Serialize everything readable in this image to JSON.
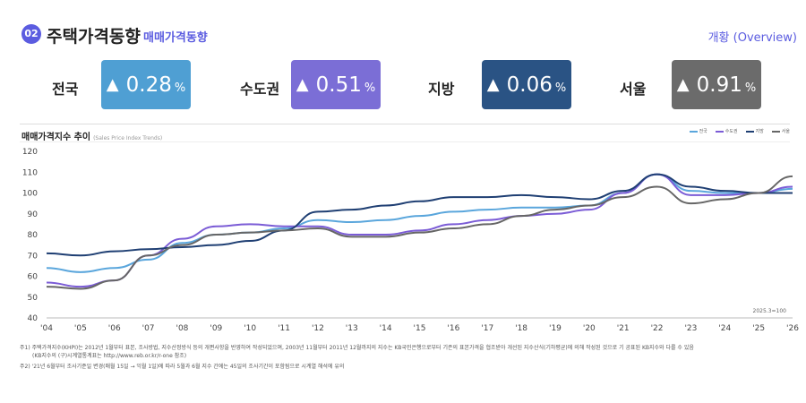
{
  "header": {
    "number": "02",
    "title": "주택가격동향",
    "subtitle": "매매가격동향",
    "overview_link": "개황 (Overview)"
  },
  "kpis": [
    {
      "label": "전국",
      "value": "0.28",
      "unit": "%",
      "arrow": "▲",
      "color": "#4f9fd3"
    },
    {
      "label": "수도권",
      "value": "0.51",
      "unit": "%",
      "arrow": "▲",
      "color": "#7b6ed6"
    },
    {
      "label": "지방",
      "value": "0.06",
      "unit": "%",
      "arrow": "▲",
      "color": "#2a5384"
    },
    {
      "label": "서울",
      "value": "0.91",
      "unit": "%",
      "arrow": "▲",
      "color": "#6b6b6b"
    }
  ],
  "chart_data": {
    "type": "line",
    "title": "매매가격지수 추이",
    "title_en": "(Sales Price Index Trends)",
    "base_note": "2025.3=100",
    "x": [
      "'04",
      "'05",
      "'06",
      "'07",
      "'08",
      "'09",
      "'10",
      "'11",
      "'12",
      "'13",
      "'14",
      "'15",
      "'16",
      "'17",
      "'18",
      "'19",
      "'20",
      "'21",
      "'22",
      "'23",
      "'24",
      "'25",
      "'26"
    ],
    "ylim": [
      40,
      120
    ],
    "yticks": [
      40,
      50,
      60,
      70,
      80,
      90,
      100,
      110,
      120
    ],
    "grid": false,
    "legend": "top-right",
    "series": [
      {
        "name": "전국",
        "color": "#5aa6dc",
        "values": [
          64,
          62,
          64,
          68,
          76,
          80,
          81,
          83,
          87,
          86,
          87,
          89,
          91,
          92,
          93,
          93,
          94,
          100,
          109,
          101,
          100,
          100,
          102
        ]
      },
      {
        "name": "수도권",
        "color": "#7b5cd6",
        "values": [
          57,
          55,
          58,
          70,
          78,
          84,
          85,
          84,
          84,
          80,
          80,
          82,
          85,
          87,
          89,
          90,
          92,
          100,
          109,
          99,
          99,
          100,
          103
        ]
      },
      {
        "name": "지방",
        "color": "#1f3f73",
        "values": [
          71,
          70,
          72,
          73,
          74,
          75,
          77,
          82,
          91,
          92,
          94,
          96,
          98,
          98,
          99,
          98,
          97,
          101,
          109,
          103,
          101,
          100,
          100
        ]
      },
      {
        "name": "서울",
        "color": "#666666",
        "values": [
          55,
          54,
          58,
          70,
          75,
          80,
          81,
          82,
          83,
          79,
          79,
          81,
          83,
          85,
          89,
          92,
          94,
          98,
          103,
          95,
          97,
          100,
          108
        ]
      }
    ]
  },
  "notes": [
    "주1) 주택가격지수(KHPI)는 2012년 1월부터 표본, 조사방법, 지수산정방식 등의 개편사항을 반영하여 작성되었으며, 2003년 11월부터 2011년 12월까지의 지수는 KB국민은행으로부터 기존의 표본가격을 협조받아 개선된 지수산식(기하평균)에 의해 작성된 것으로 기 공표된 KB지수와 다를 수 있음",
    "(KB지수의 (구)시계열통계표는 http://www.reb.or.kr/r-one 참조)",
    "주2) '21년 6월부터 조사기준일 변경(매월 15일 → 익월 1일)에 따라 5월과 6월 지수 간에는 45일의 조사기간이 포함됨으로 시계열 해석에 유의"
  ]
}
